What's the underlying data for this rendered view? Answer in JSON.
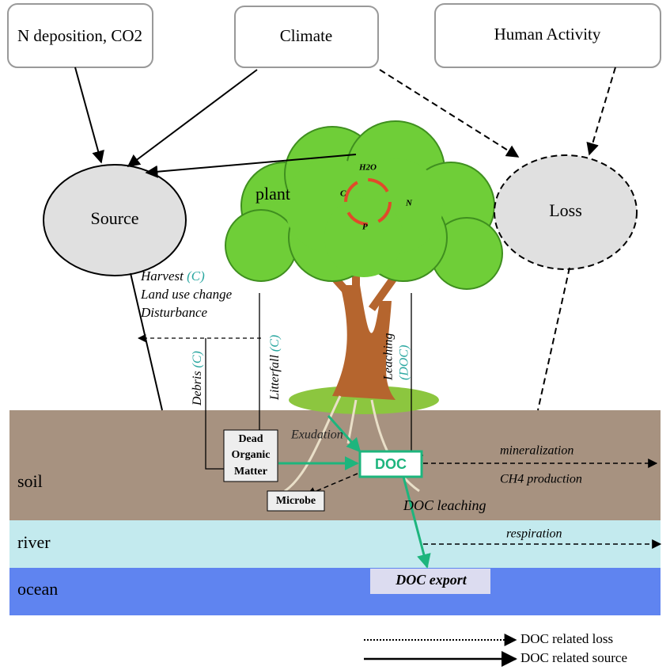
{
  "drivers": [
    "N deposition, CO2",
    "Climate",
    "Human Activity"
  ],
  "source": "Source",
  "loss": "Loss",
  "plant": {
    "label": "plant",
    "cycle": [
      "H2O",
      "C",
      "N",
      "P"
    ]
  },
  "removal": {
    "harvest": "Harvest",
    "harvest_tag": "(C)",
    "lines": [
      "Land use change",
      "Disturbance"
    ]
  },
  "fluxes": {
    "debris": "Debris",
    "debris_tag": "(C)",
    "litterfall": "Litterfall",
    "litterfall_tag": "(C)",
    "leaching": "Leaching",
    "leaching_tag": "(DOC)"
  },
  "soil_processes": {
    "exudation": "Exudation",
    "dom": [
      "Dead",
      "Organic",
      "Matter"
    ],
    "doc": "DOC",
    "mineralization": "mineralization",
    "ch4": "CH4 production",
    "microbe": "Microbe",
    "doc_leaching": "DOC leaching",
    "respiration": "respiration",
    "doc_export": "DOC export"
  },
  "layers": [
    "soil",
    "river",
    "ocean"
  ],
  "legend": [
    "DOC related loss",
    "DOC related source"
  ]
}
